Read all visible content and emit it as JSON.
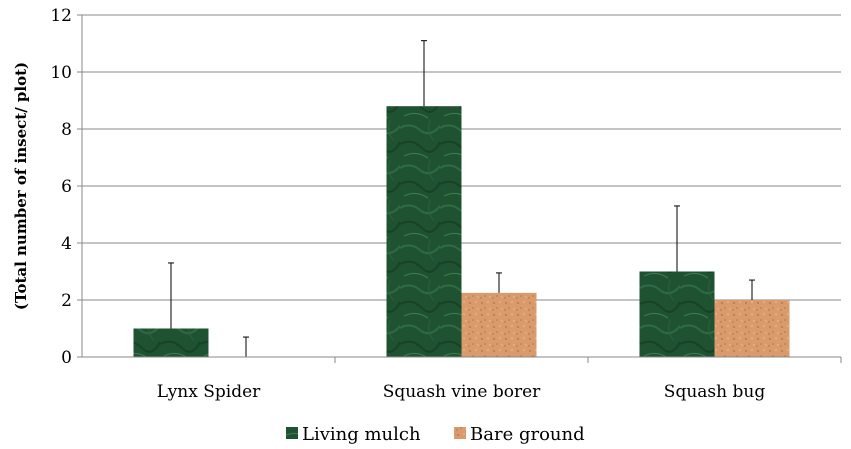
{
  "chart_data": {
    "type": "bar",
    "title": "",
    "xlabel": "",
    "ylabel": "(Total number of insect/ plot)",
    "ylim": [
      0,
      12
    ],
    "yticks": [
      0,
      2,
      4,
      6,
      8,
      10,
      12
    ],
    "grid": true,
    "legend_position": "bottom",
    "categories": [
      "Lynx  Spider",
      "Squash vine borer",
      "Squash bug"
    ],
    "series": [
      {
        "name": "Living mulch",
        "color": "#1f5230",
        "pattern": "green-marble",
        "values": [
          1.0,
          8.8,
          3.0
        ],
        "error_plus": [
          2.3,
          2.3,
          2.3
        ]
      },
      {
        "name": "Bare ground",
        "color": "#d99a6c",
        "pattern": "speckled-tan",
        "values": [
          0.0,
          2.25,
          2.0
        ],
        "error_plus": [
          0.7,
          0.7,
          0.7
        ]
      }
    ]
  }
}
